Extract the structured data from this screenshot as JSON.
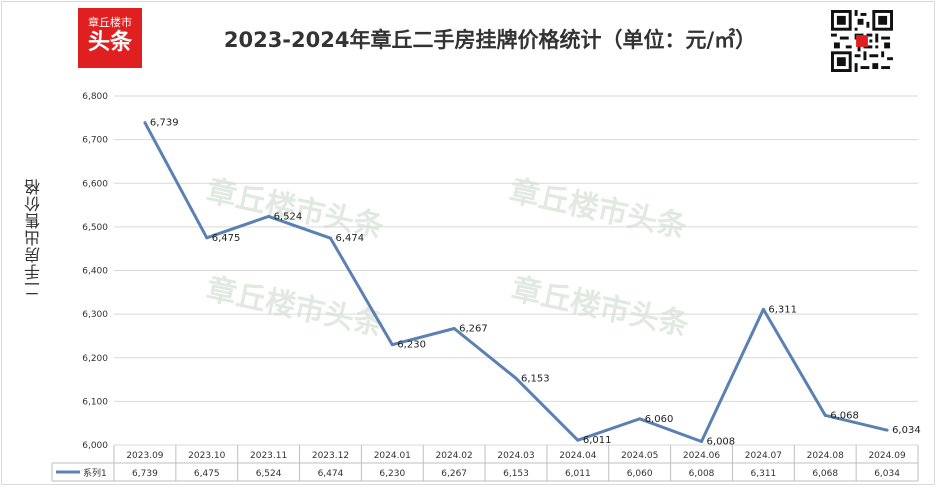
{
  "header": {
    "logo_line1": "章丘楼市",
    "logo_line2": "头条",
    "title": "2023-2024年章丘二手房挂牌价格统计（单位：元/㎡）"
  },
  "watermark": "章丘楼市头条",
  "colors": {
    "line": "#5b80b2",
    "logo_bg": "#e02020",
    "grid": "#d9d9d9"
  },
  "chart_data": {
    "type": "line",
    "title": "2023-2024年章丘二手房挂牌价格统计（单位：元/㎡）",
    "ylabel": "二手房出售价格",
    "xlabel": "",
    "categories": [
      "2023.09",
      "2023.10",
      "2023.11",
      "2023.12",
      "2024.01",
      "2024.02",
      "2024.03",
      "2024.04",
      "2024.05",
      "2024.06",
      "2024.07",
      "2024.08",
      "2024.09"
    ],
    "series": [
      {
        "name": "系列1",
        "values": [
          6739,
          6475,
          6524,
          6474,
          6230,
          6267,
          6153,
          6011,
          6060,
          6008,
          6311,
          6068,
          6034
        ]
      }
    ],
    "data_labels": [
      "6,739",
      "6,475",
      "6,524",
      "6,474",
      "6,230",
      "6,267",
      "6,153",
      "6,011",
      "6,060",
      "6,008",
      "6,311",
      "6,068",
      "6,034"
    ],
    "ylim": [
      6000,
      6800
    ],
    "yticks": [
      6000,
      6100,
      6200,
      6300,
      6400,
      6500,
      6600,
      6700,
      6800
    ],
    "ytick_labels": [
      "6,000",
      "6,100",
      "6,200",
      "6,300",
      "6,400",
      "6,500",
      "6,600",
      "6,700",
      "6,800"
    ],
    "grid": true,
    "legend": "bottom-table"
  }
}
